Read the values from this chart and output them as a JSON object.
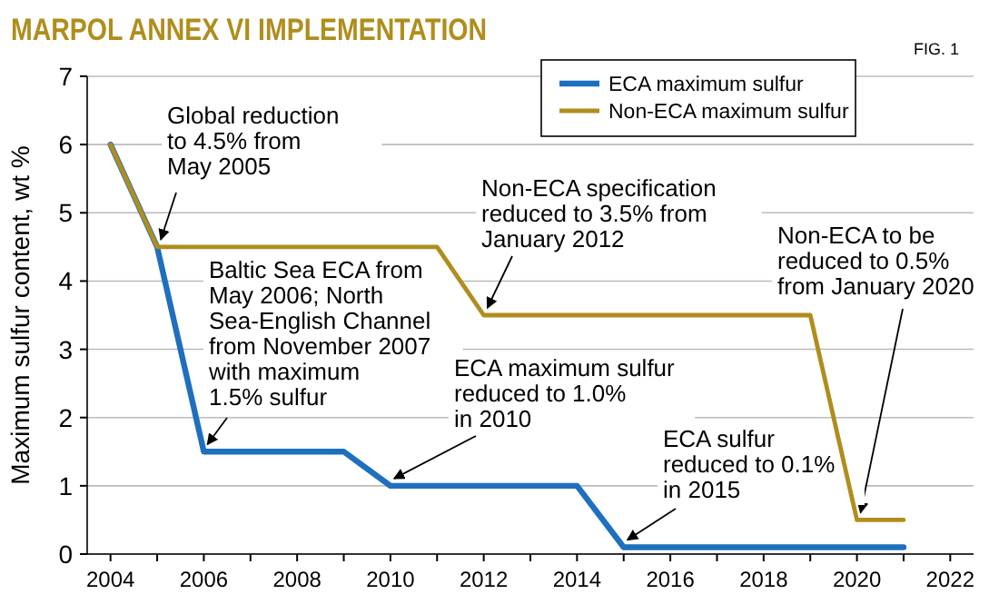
{
  "chart_data": {
    "type": "line",
    "title": "MARPOL ANNEX VI IMPLEMENTATION",
    "ylabel": "Maximum sulfur content, wt %",
    "x": [
      2004,
      2005,
      2006,
      2009,
      2010,
      2014,
      2015,
      2021
    ],
    "series": [
      {
        "name": "ECA maximum sulfur",
        "color": "#1f6fbf",
        "values": [
          6,
          4.5,
          1.5,
          1.5,
          1,
          1,
          0.1,
          0.1
        ]
      },
      {
        "name": "Non-ECA maximum sulfur",
        "color": "#b08d1c",
        "x": [
          2004,
          2005,
          2011,
          2012,
          2019,
          2020,
          2021
        ],
        "values": [
          6,
          4.5,
          4.5,
          3.5,
          3.5,
          0.5,
          0.5
        ]
      }
    ],
    "xlim": [
      2003.5,
      2022.5
    ],
    "xticks": [
      2004,
      {
        "value": 2005,
        "label": null
      },
      2006,
      {
        "value": 2007,
        "label": null
      },
      2008,
      {
        "value": 2009,
        "label": null
      },
      2010,
      {
        "value": 2011,
        "label": null
      },
      2012,
      {
        "value": 2013,
        "label": null
      },
      2014,
      {
        "value": 2015,
        "label": null
      },
      2016,
      {
        "value": 2017,
        "label": null
      },
      2018,
      {
        "value": 2019,
        "label": null
      },
      2020,
      {
        "value": 2021,
        "label": null
      },
      2022
    ],
    "ylim": [
      0,
      7
    ],
    "yticks": [
      0,
      1,
      2,
      3,
      4,
      5,
      6,
      7
    ],
    "grid": "y",
    "legend": "top right",
    "marker": "none",
    "line_style": "solid",
    "annotations": [
      "FIG. 1",
      {
        "text": "Global reduction\nto 4.5% from\nMay 2005",
        "x": 2005,
        "y": 4.5
      },
      {
        "text": "Baltic Sea ECA from\nMay 2006; North\nSea-English Channel\nfrom November 2007\nwith maximum\n1.5% sulfur",
        "x": 2006,
        "y": 1.5
      },
      {
        "text": "Non-ECA specification\nreduced to 3.5% from\nJanuary 2012",
        "x": 2012,
        "y": 3.5
      },
      {
        "text": "Non-ECA to be\nreduced to 0.5%\nfrom January 2020",
        "x": 2020,
        "y": 0.5
      },
      {
        "text": "ECA maximum sulfur\nreduced to 1.0%\nin 2010",
        "x": 2010,
        "y": 1
      },
      {
        "text": "ECA sulfur\nreduced to 0.1%\nin 2015",
        "x": 2015,
        "y": 0.1
      }
    ]
  }
}
